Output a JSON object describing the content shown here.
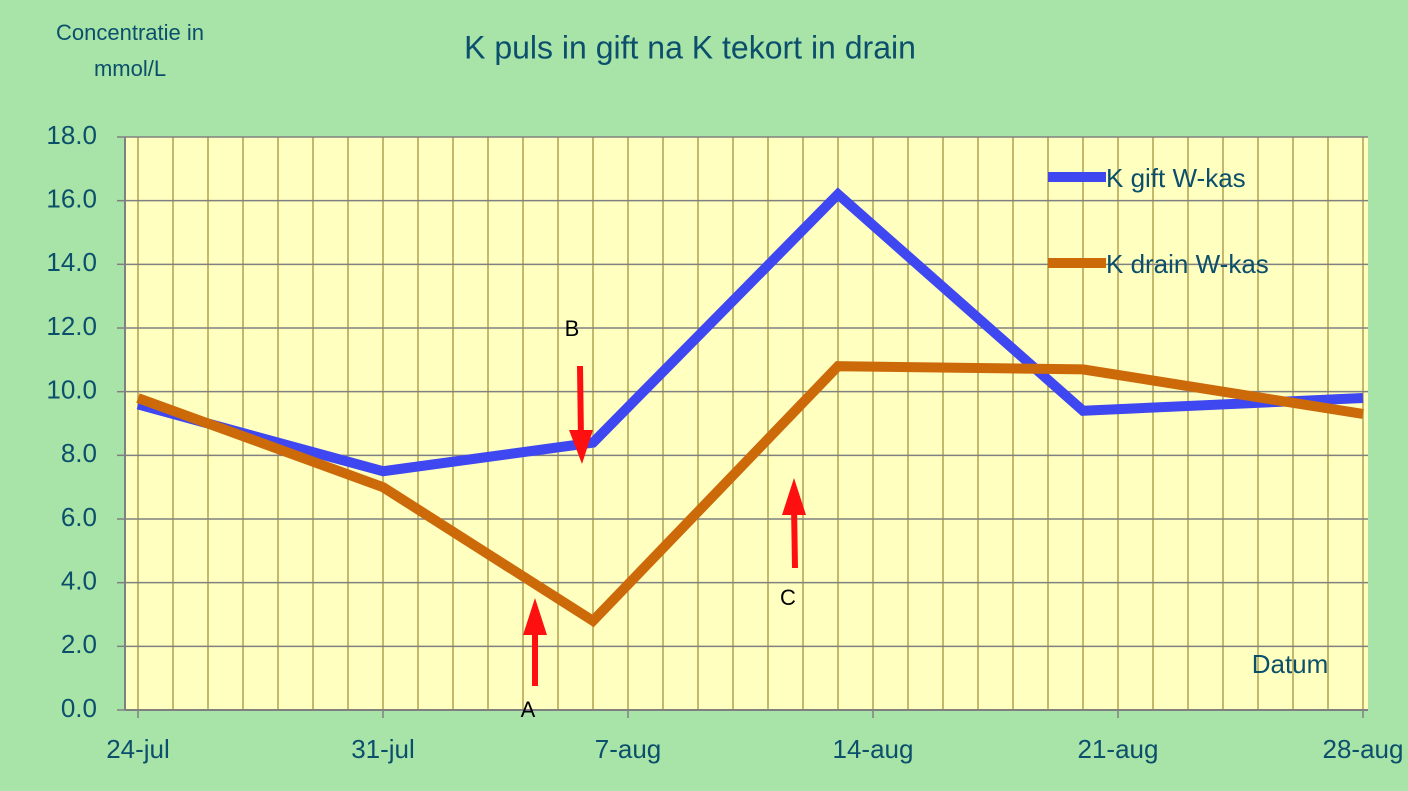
{
  "chart_data": {
    "type": "line",
    "title": "K puls in gift na K tekort in drain",
    "ylabel": [
      "Concentratie in",
      "mmol/L"
    ],
    "xlabel": "Datum",
    "x": [
      "24-jul",
      "31-jul",
      "6-aug",
      "13-aug",
      "20-aug",
      "28-aug"
    ],
    "series": [
      {
        "name": "K gift W-kas",
        "color": "#3f48f0",
        "values": [
          9.6,
          7.5,
          8.4,
          16.2,
          9.4,
          9.8
        ]
      },
      {
        "name": "K drain W-kas",
        "color": "#cc6a0a",
        "values": [
          9.8,
          7.0,
          2.8,
          10.8,
          10.7,
          9.3
        ]
      }
    ],
    "xlim": [
      "24-jul",
      "28-aug"
    ],
    "xticks": [
      "24-jul",
      "31-jul",
      "7-aug",
      "14-aug",
      "21-aug",
      "28-aug"
    ],
    "ylim": [
      0,
      18
    ],
    "yticks": [
      {
        "value": 0,
        "label": "0.0"
      },
      {
        "value": 2,
        "label": "2.0"
      },
      {
        "value": 4,
        "label": "4.0"
      },
      {
        "value": 6,
        "label": "6.0"
      },
      {
        "value": 8,
        "label": "8.0"
      },
      {
        "value": 10,
        "label": "10.0"
      },
      {
        "value": 12,
        "label": "12.0"
      },
      {
        "value": 14,
        "label": "14.0"
      },
      {
        "value": 16,
        "label": "16.0"
      },
      {
        "value": 18,
        "label": "18.0"
      }
    ],
    "grid": true,
    "legend": "top-right",
    "annotations": [
      "A",
      "B",
      "C"
    ]
  }
}
